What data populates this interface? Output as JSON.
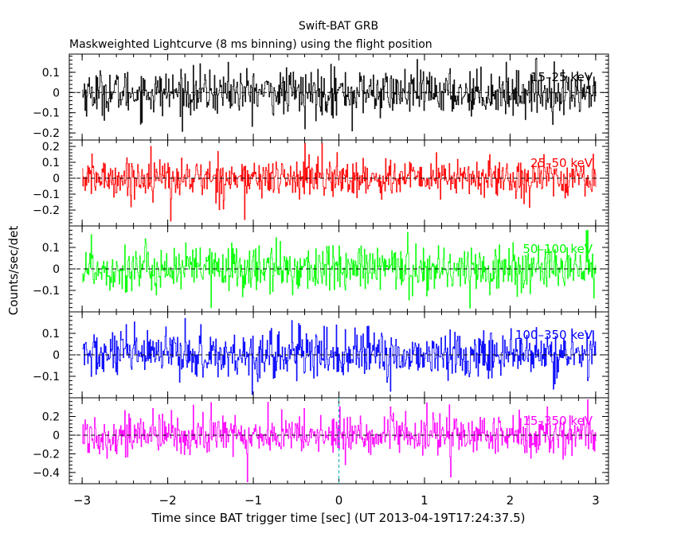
{
  "header": {
    "title": "Swift-BAT GRB",
    "subtitle": "Maskweighted Lightcurve (8 ms binning) using the flight position"
  },
  "chart_data": {
    "type": "line",
    "xlabel": "Time since BAT trigger time [sec] (UT 2013-04-19T17:24:37.5)",
    "ylabel": "Counts/sec/det",
    "xlim": [
      -3.15,
      3.15
    ],
    "xticks": [
      -3,
      -2,
      -1,
      0,
      1,
      2,
      3
    ],
    "xtick_labels": [
      "−3",
      "−2",
      "−1",
      "0",
      "1",
      "2",
      "3"
    ],
    "bin_seconds": 0.008,
    "x_range": [
      -3.0,
      3.0
    ],
    "trigger_marker_x": 0,
    "panels": [
      {
        "name": "15–25 keV",
        "color": "#000000",
        "ylim": [
          -0.235,
          0.19
        ],
        "yticks": [
          0.1,
          0,
          -0.1,
          -0.2
        ],
        "ytick_labels": [
          "0.1",
          "0",
          "−0.1",
          "−0.2"
        ],
        "noise_sigma": 0.055,
        "y_extremes": [
          0.19,
          -0.21
        ],
        "spikes": [
          [
            0.15,
            -0.19
          ],
          [
            -0.1,
            0.14
          ],
          [
            2.3,
            0.17
          ],
          [
            -1.3,
            0.15
          ],
          [
            -0.4,
            -0.18
          ]
        ]
      },
      {
        "name": "25–50 keV",
        "color": "#ff0000",
        "ylim": [
          -0.3,
          0.24
        ],
        "yticks": [
          0.2,
          0.1,
          0,
          -0.1,
          -0.2
        ],
        "ytick_labels": [
          "0.2",
          "0.1",
          "0",
          "−0.1",
          "−0.2"
        ],
        "noise_sigma": 0.06,
        "y_extremes": [
          0.22,
          -0.28
        ],
        "spikes": [
          [
            -1.97,
            -0.27
          ],
          [
            -1.1,
            -0.26
          ],
          [
            -0.4,
            0.22
          ],
          [
            -0.2,
            0.22
          ],
          [
            -2.2,
            0.2
          ]
        ]
      },
      {
        "name": "50–100 keV",
        "color": "#00ff00",
        "ylim": [
          -0.2,
          0.2
        ],
        "yticks": [
          0.1,
          0,
          -0.1
        ],
        "ytick_labels": [
          "0.1",
          "0",
          "−0.1"
        ],
        "noise_sigma": 0.055,
        "y_extremes": [
          0.19,
          -0.19
        ],
        "spikes": [
          [
            -1.5,
            -0.18
          ],
          [
            0.8,
            0.17
          ],
          [
            2.9,
            0.18
          ],
          [
            -2.9,
            0.16
          ]
        ]
      },
      {
        "name": "100–350 keV",
        "color": "#0000ff",
        "ylim": [
          -0.2,
          0.2
        ],
        "yticks": [
          0.1,
          0,
          -0.1
        ],
        "ytick_labels": [
          "0.1",
          "0",
          "−0.1"
        ],
        "noise_sigma": 0.055,
        "y_extremes": [
          0.19,
          -0.19
        ],
        "spikes": [
          [
            -1.8,
            0.17
          ],
          [
            2.5,
            -0.16
          ],
          [
            -0.55,
            0.16
          ],
          [
            0.6,
            -0.17
          ]
        ]
      },
      {
        "name": "15–350 keV",
        "color": "#ff00ff",
        "ylim": [
          -0.52,
          0.4
        ],
        "yticks": [
          0.2,
          0,
          -0.2,
          -0.4
        ],
        "ytick_labels": [
          "0.2",
          "0",
          "−0.2",
          "−0.4"
        ],
        "noise_sigma": 0.11,
        "y_extremes": [
          0.38,
          -0.5
        ],
        "spikes": [
          [
            -1.07,
            -0.5
          ],
          [
            1.3,
            -0.45
          ],
          [
            -1.5,
            0.35
          ],
          [
            2.9,
            0.38
          ]
        ]
      }
    ],
    "grid": false,
    "trigger_line_color": "#00aaaa"
  }
}
